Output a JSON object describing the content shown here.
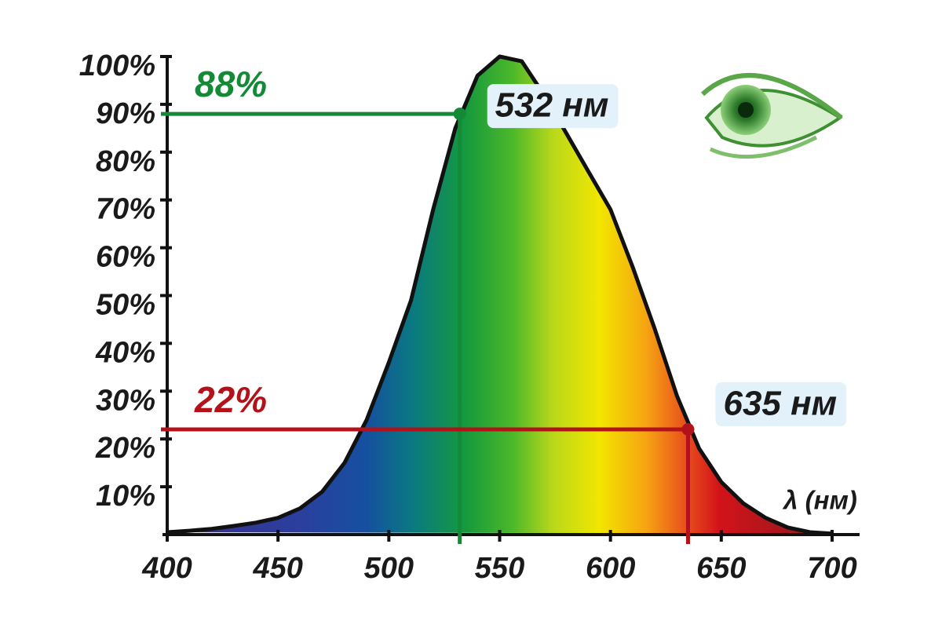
{
  "chart_data": {
    "type": "area",
    "x": [
      400,
      410,
      420,
      430,
      440,
      450,
      460,
      470,
      480,
      490,
      500,
      510,
      520,
      530,
      540,
      550,
      560,
      570,
      580,
      590,
      600,
      610,
      620,
      630,
      640,
      650,
      660,
      670,
      680,
      690,
      700
    ],
    "values": [
      0.5,
      0.8,
      1.2,
      1.8,
      2.5,
      3.5,
      5.5,
      9,
      15,
      24,
      36,
      49,
      68,
      85,
      96,
      100,
      99,
      92,
      84,
      76,
      68,
      56,
      43,
      29,
      18,
      11,
      6.5,
      3.5,
      1.5,
      0.5,
      0.2
    ],
    "xlim": [
      400,
      700
    ],
    "ylim": [
      0,
      100
    ],
    "xticks": [
      400,
      450,
      500,
      550,
      600,
      650,
      700
    ],
    "yticks": [
      {
        "value": 10,
        "label": "10%"
      },
      {
        "value": 20,
        "label": "20%"
      },
      {
        "value": 30,
        "label": "30%"
      },
      {
        "value": 40,
        "label": "40%"
      },
      {
        "value": 50,
        "label": "50%"
      },
      {
        "value": 60,
        "label": "60%"
      },
      {
        "value": 70,
        "label": "70%"
      },
      {
        "value": 80,
        "label": "80%"
      },
      {
        "value": 90,
        "label": "90%"
      },
      {
        "value": 100,
        "label": "100%"
      }
    ],
    "x_label": "λ (нм)",
    "line_color": "#111111",
    "highlights": [
      {
        "x": 532,
        "x_label": "532 нм",
        "y": 88,
        "y_label": "88%",
        "color": "#138a36"
      },
      {
        "x": 635,
        "x_label": "635 нм",
        "y": 22,
        "y_label": "22%",
        "color": "#b3121a"
      }
    ]
  }
}
